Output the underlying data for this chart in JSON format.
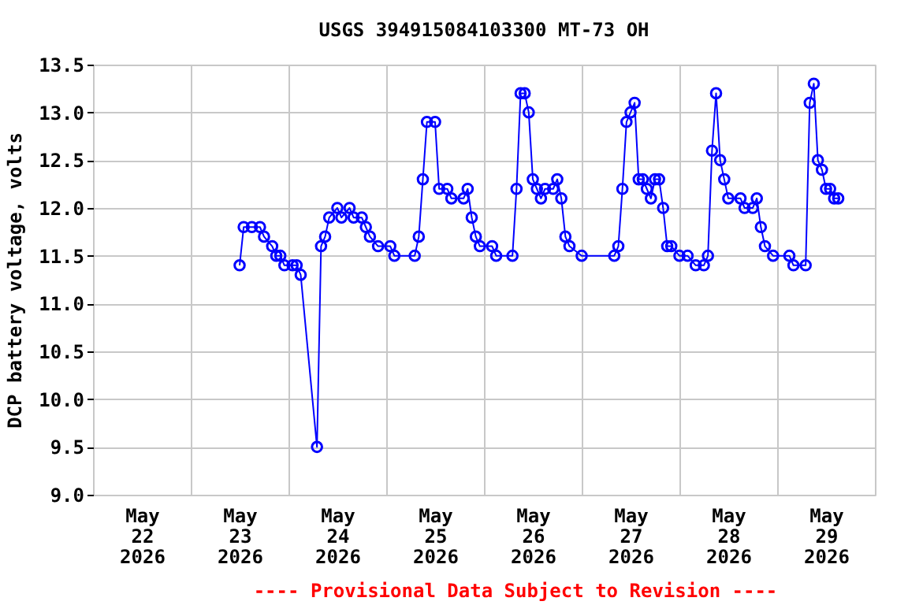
{
  "chart_data": {
    "type": "line",
    "title": "USGS 394915084103300 MT-73 OH",
    "ylabel": "DCP battery voltage, volts",
    "annotations": [
      "---- Provisional Data Subject to Revision ----"
    ],
    "x": [
      "2026-05-23T12:00",
      "2026-05-23T13:00",
      "2026-05-23T15:00",
      "2026-05-23T17:00",
      "2026-05-23T18:00",
      "2026-05-23T20:00",
      "2026-05-23T21:00",
      "2026-05-23T22:00",
      "2026-05-23T23:00",
      "2026-05-24T01:00",
      "2026-05-24T02:00",
      "2026-05-24T03:00",
      "2026-05-24T07:00",
      "2026-05-24T08:00",
      "2026-05-24T09:00",
      "2026-05-24T10:00",
      "2026-05-24T12:00",
      "2026-05-24T13:00",
      "2026-05-24T15:00",
      "2026-05-24T16:00",
      "2026-05-24T18:00",
      "2026-05-24T19:00",
      "2026-05-24T20:00",
      "2026-05-24T22:00",
      "2026-05-25T01:00",
      "2026-05-25T02:00",
      "2026-05-25T07:00",
      "2026-05-25T08:00",
      "2026-05-25T09:00",
      "2026-05-25T10:00",
      "2026-05-25T12:00",
      "2026-05-25T13:00",
      "2026-05-25T15:00",
      "2026-05-25T16:00",
      "2026-05-25T19:00",
      "2026-05-25T20:00",
      "2026-05-25T21:00",
      "2026-05-25T22:00",
      "2026-05-25T23:00",
      "2026-05-26T02:00",
      "2026-05-26T03:00",
      "2026-05-26T07:00",
      "2026-05-26T08:00",
      "2026-05-26T09:00",
      "2026-05-26T10:00",
      "2026-05-26T11:00",
      "2026-05-26T12:00",
      "2026-05-26T13:00",
      "2026-05-26T14:00",
      "2026-05-26T15:00",
      "2026-05-26T17:00",
      "2026-05-26T18:00",
      "2026-05-26T19:00",
      "2026-05-26T20:00",
      "2026-05-26T21:00",
      "2026-05-27T00:00",
      "2026-05-27T08:00",
      "2026-05-27T09:00",
      "2026-05-27T10:00",
      "2026-05-27T11:00",
      "2026-05-27T12:00",
      "2026-05-27T13:00",
      "2026-05-27T14:00",
      "2026-05-27T15:00",
      "2026-05-27T16:00",
      "2026-05-27T17:00",
      "2026-05-27T18:00",
      "2026-05-27T19:00",
      "2026-05-27T20:00",
      "2026-05-27T21:00",
      "2026-05-27T22:00",
      "2026-05-28T00:00",
      "2026-05-28T02:00",
      "2026-05-28T04:00",
      "2026-05-28T06:00",
      "2026-05-28T07:00",
      "2026-05-28T08:00",
      "2026-05-28T09:00",
      "2026-05-28T10:00",
      "2026-05-28T11:00",
      "2026-05-28T12:00",
      "2026-05-28T15:00",
      "2026-05-28T16:00",
      "2026-05-28T18:00",
      "2026-05-28T19:00",
      "2026-05-28T20:00",
      "2026-05-28T21:00",
      "2026-05-28T23:00",
      "2026-05-29T03:00",
      "2026-05-29T04:00",
      "2026-05-29T07:00",
      "2026-05-29T08:00",
      "2026-05-29T09:00",
      "2026-05-29T10:00",
      "2026-05-29T11:00",
      "2026-05-29T12:00",
      "2026-05-29T13:00",
      "2026-05-29T14:00",
      "2026-05-29T15:00"
    ],
    "series": [
      {
        "color": "#0000ff",
        "values": [
          11.4,
          11.8,
          11.8,
          11.8,
          11.7,
          11.6,
          11.5,
          11.5,
          11.4,
          11.4,
          11.4,
          11.3,
          9.5,
          11.6,
          11.7,
          11.9,
          12.0,
          11.9,
          12.0,
          11.9,
          11.9,
          11.8,
          11.7,
          11.6,
          11.6,
          11.5,
          11.5,
          11.7,
          12.3,
          12.9,
          12.9,
          12.2,
          12.2,
          12.1,
          12.1,
          12.2,
          11.9,
          11.7,
          11.6,
          11.6,
          11.5,
          11.5,
          12.2,
          13.2,
          13.2,
          13.0,
          12.3,
          12.2,
          12.1,
          12.2,
          12.2,
          12.3,
          12.1,
          11.7,
          11.6,
          11.5,
          11.5,
          11.6,
          12.2,
          12.9,
          13.0,
          13.1,
          12.3,
          12.3,
          12.2,
          12.1,
          12.3,
          12.3,
          12.0,
          11.6,
          11.6,
          11.5,
          11.5,
          11.4,
          11.4,
          11.5,
          12.6,
          13.2,
          12.5,
          12.3,
          12.1,
          12.1,
          12.0,
          12.0,
          12.1,
          11.8,
          11.6,
          11.5,
          11.5,
          11.4,
          11.4,
          13.1,
          13.3,
          12.5,
          12.4,
          12.2,
          12.2,
          12.1,
          12.1
        ]
      }
    ],
    "xlim": [
      "2026-05-22",
      "2026-05-30"
    ],
    "xticks": [
      {
        "value": "2026-05-22",
        "label": null
      },
      {
        "value": "2026-05-22T12:00",
        "label": "May 22 2026"
      },
      {
        "value": "2026-05-23",
        "label": null
      },
      {
        "value": "2026-05-23T12:00",
        "label": "May 23 2026"
      },
      {
        "value": "2026-05-24",
        "label": null
      },
      {
        "value": "2026-05-24T12:00",
        "label": "May 24 2026"
      },
      {
        "value": "2026-05-25",
        "label": null
      },
      {
        "value": "2026-05-25T12:00",
        "label": "May 25 2026"
      },
      {
        "value": "2026-05-26",
        "label": null
      },
      {
        "value": "2026-05-26T12:00",
        "label": "May 26 2026"
      },
      {
        "value": "2026-05-27",
        "label": null
      },
      {
        "value": "2026-05-27T12:00",
        "label": "May 27 2026"
      },
      {
        "value": "2026-05-28",
        "label": null
      },
      {
        "value": "2026-05-28T12:00",
        "label": "May 28 2026"
      },
      {
        "value": "2026-05-29",
        "label": null
      },
      {
        "value": "2026-05-29T12:00",
        "label": "May 29 2026"
      },
      {
        "value": "2026-05-30",
        "label": null
      }
    ],
    "ylim": [
      9.0,
      13.5
    ],
    "yticks": [
      {
        "value": 9.0,
        "label": "9.0"
      },
      {
        "value": 9.5,
        "label": "9.5"
      },
      {
        "value": 10.0,
        "label": "10.0"
      },
      {
        "value": 10.5,
        "label": "10.5"
      },
      {
        "value": 11.0,
        "label": "11.0"
      },
      {
        "value": 11.5,
        "label": "11.5"
      },
      {
        "value": 12.0,
        "label": "12.0"
      },
      {
        "value": 12.5,
        "label": "12.5"
      },
      {
        "value": 13.0,
        "label": "13.0"
      },
      {
        "value": 13.5,
        "label": "13.5"
      }
    ],
    "grid": true,
    "marker": "circle",
    "line_style": "solid"
  }
}
